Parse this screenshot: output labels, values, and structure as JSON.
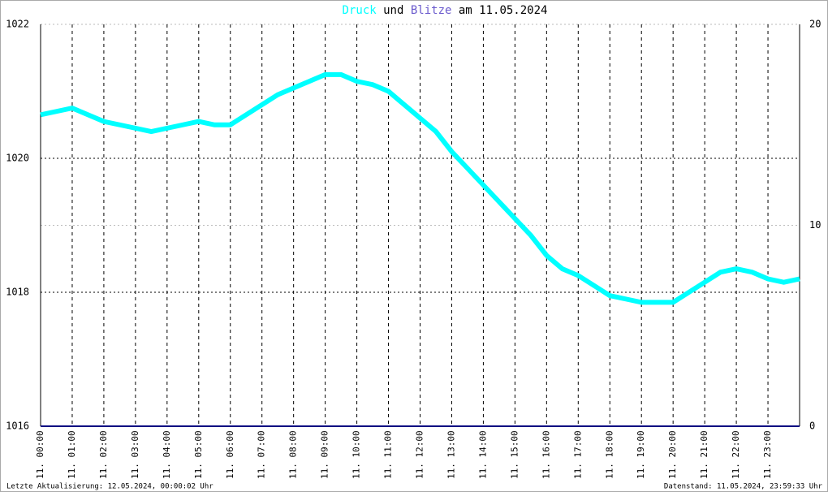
{
  "chart_data": {
    "type": "line",
    "title_connector": "und",
    "title_date": "am 11.05.2024",
    "x": [
      0,
      0.5,
      1,
      1.5,
      2,
      2.5,
      3,
      3.5,
      4,
      4.5,
      5,
      5.5,
      6,
      6.5,
      7,
      7.5,
      8,
      8.5,
      9,
      9.5,
      10,
      10.5,
      11,
      11.5,
      12,
      12.5,
      13,
      13.5,
      14,
      14.5,
      15,
      15.5,
      16,
      16.5,
      17,
      17.5,
      18,
      18.5,
      19,
      19.5,
      20,
      20.5,
      21,
      21.5,
      22,
      22.5,
      23,
      23.5,
      24
    ],
    "series": [
      {
        "name": "Druck",
        "color": "#00ffff",
        "axis": "y",
        "values": [
          1020.65,
          1020.7,
          1020.75,
          1020.65,
          1020.55,
          1020.5,
          1020.45,
          1020.4,
          1020.45,
          1020.5,
          1020.55,
          1020.5,
          1020.5,
          1020.65,
          1020.8,
          1020.95,
          1021.05,
          1021.15,
          1021.25,
          1021.25,
          1021.15,
          1021.1,
          1021.0,
          1020.8,
          1020.6,
          1020.4,
          1020.1,
          1019.85,
          1019.6,
          1019.35,
          1019.1,
          1018.85,
          1018.55,
          1018.35,
          1018.25,
          1018.1,
          1017.95,
          1017.9,
          1017.85,
          1017.85,
          1017.85,
          1018.0,
          1018.15,
          1018.3,
          1018.35,
          1018.3,
          1018.2,
          1018.15,
          1018.2
        ]
      },
      {
        "name": "Blitze",
        "color": "#000080",
        "title_color": "#6a5acd",
        "axis": "y2",
        "values": [
          0,
          0,
          0,
          0,
          0,
          0,
          0,
          0,
          0,
          0,
          0,
          0,
          0,
          0,
          0,
          0,
          0,
          0,
          0,
          0,
          0,
          0,
          0,
          0,
          0,
          0,
          0,
          0,
          0,
          0,
          0,
          0,
          0,
          0,
          0,
          0,
          0,
          0,
          0,
          0,
          0,
          0,
          0,
          0,
          0,
          0,
          0,
          0,
          0
        ]
      }
    ],
    "xlim": [
      0,
      24
    ],
    "xticks": [
      {
        "value": 0,
        "label": "11. 00:00"
      },
      {
        "value": 1,
        "label": "11. 01:00"
      },
      {
        "value": 2,
        "label": "11. 02:00"
      },
      {
        "value": 3,
        "label": "11. 03:00"
      },
      {
        "value": 4,
        "label": "11. 04:00"
      },
      {
        "value": 5,
        "label": "11. 05:00"
      },
      {
        "value": 6,
        "label": "11. 06:00"
      },
      {
        "value": 7,
        "label": "11. 07:00"
      },
      {
        "value": 8,
        "label": "11. 08:00"
      },
      {
        "value": 9,
        "label": "11. 09:00"
      },
      {
        "value": 10,
        "label": "11. 10:00"
      },
      {
        "value": 11,
        "label": "11. 11:00"
      },
      {
        "value": 12,
        "label": "11. 12:00"
      },
      {
        "value": 13,
        "label": "11. 13:00"
      },
      {
        "value": 14,
        "label": "11. 14:00"
      },
      {
        "value": 15,
        "label": "11. 15:00"
      },
      {
        "value": 16,
        "label": "11. 16:00"
      },
      {
        "value": 17,
        "label": "11. 17:00"
      },
      {
        "value": 18,
        "label": "11. 18:00"
      },
      {
        "value": 19,
        "label": "11. 19:00"
      },
      {
        "value": 20,
        "label": "11. 20:00"
      },
      {
        "value": 21,
        "label": "11. 21:00"
      },
      {
        "value": 22,
        "label": "11. 22:00"
      },
      {
        "value": 23,
        "label": "11. 23:00"
      }
    ],
    "ylim": [
      1016,
      1022
    ],
    "yticks": [
      1016,
      1018,
      1020,
      1022
    ],
    "y2lim": [
      0,
      20
    ],
    "y2ticks": [
      0,
      10,
      20
    ],
    "grid": true,
    "footer_left": "Letzte Aktualisierung: 12.05.2024, 00:00:02 Uhr",
    "footer_right": "Datenstand: 11.05.2024, 23:59:33 Uhr"
  }
}
